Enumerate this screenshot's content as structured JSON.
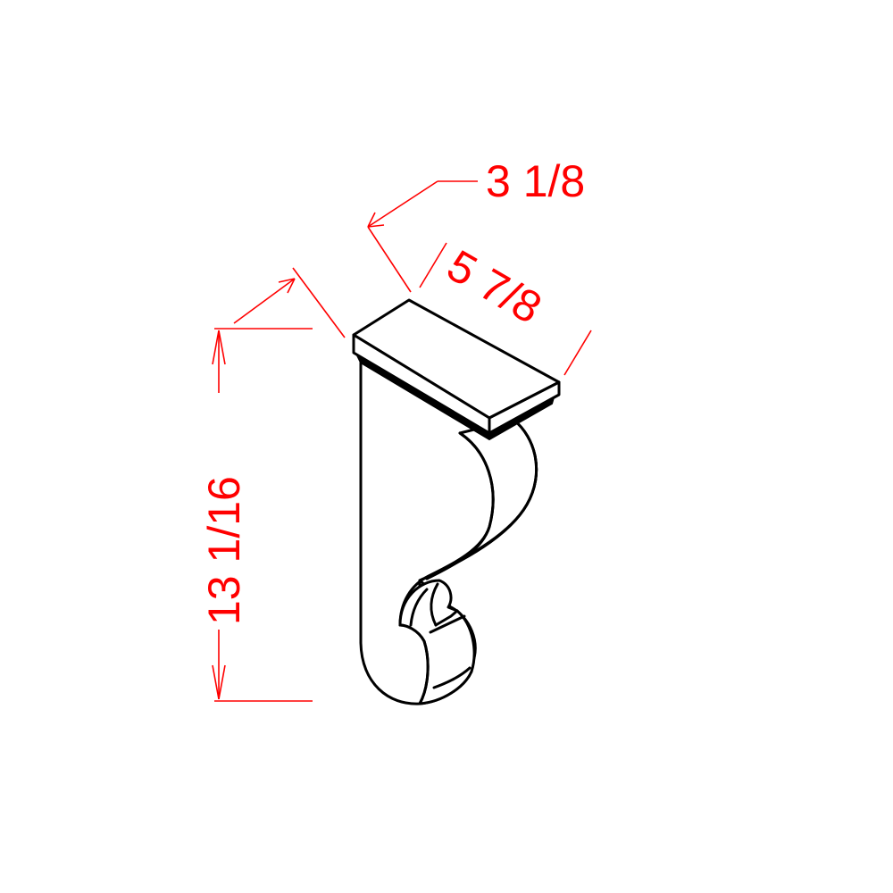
{
  "drawing": {
    "object": "corbel",
    "line_color": "#000000",
    "dimension_color": "#ff0000"
  },
  "dimensions": {
    "depth": "3 1/8",
    "width": "5 7/8",
    "height": "13 1/16"
  }
}
